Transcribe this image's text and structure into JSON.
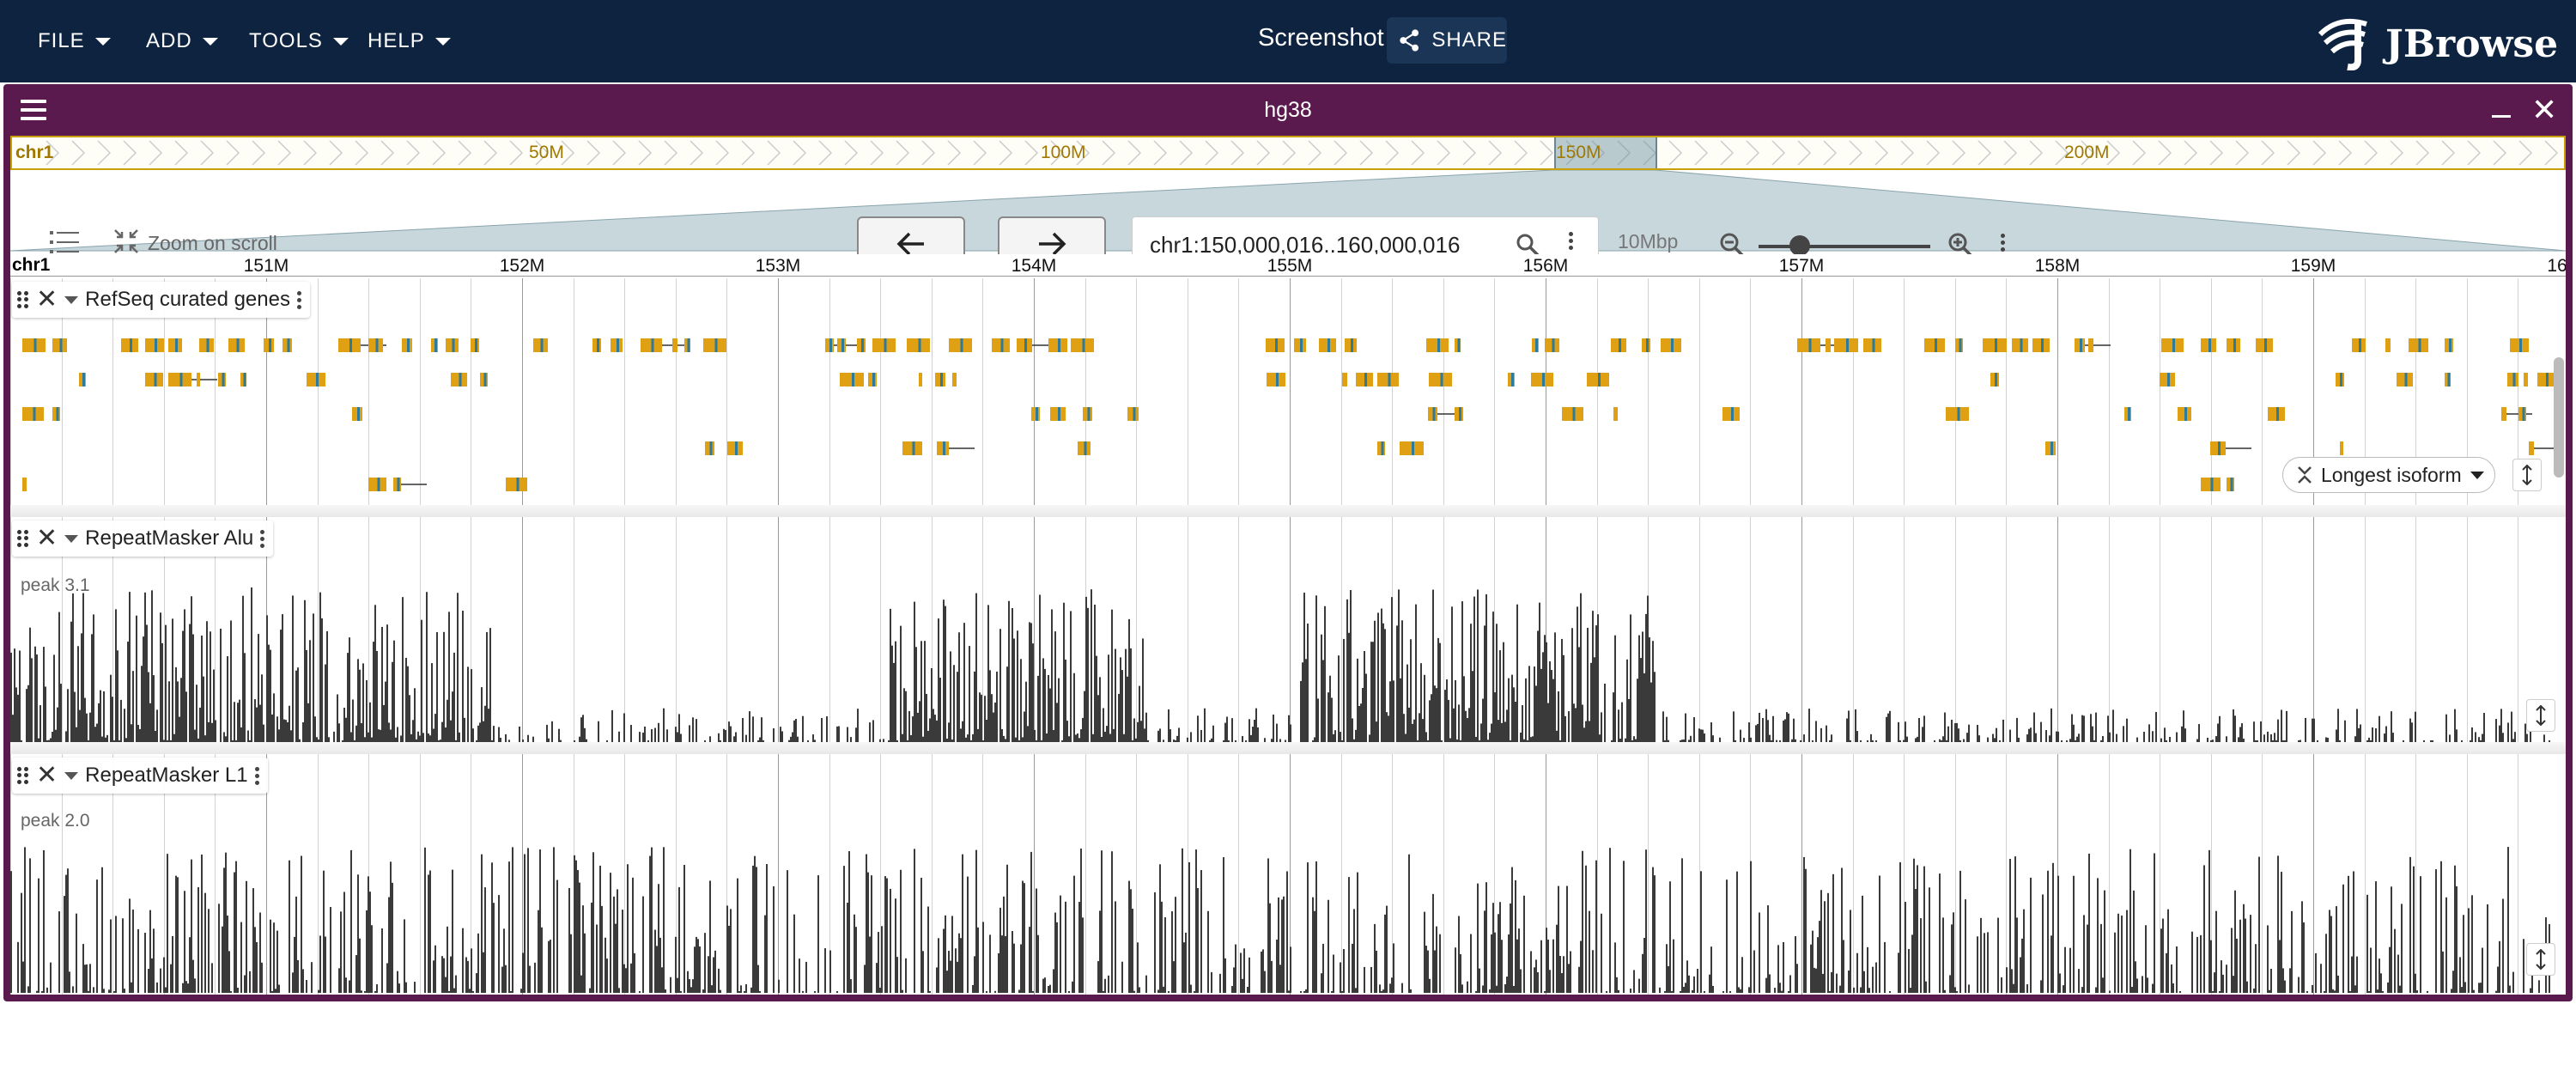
{
  "menu": [
    {
      "label": "FILE"
    },
    {
      "label": "ADD"
    },
    {
      "label": "TOOLS"
    },
    {
      "label": "HELP"
    }
  ],
  "app": {
    "screenshot_label": "Screenshot",
    "share_label": "SHARE",
    "logo_text": "JBrowse"
  },
  "view": {
    "name": "hg38",
    "overview": {
      "chrom": "chr1",
      "labels": [
        "50M",
        "100M",
        "150M",
        "200M"
      ]
    },
    "zoom_on_scroll_label": "Zoom on scroll",
    "location": "chr1:150,000,016..160,000,016",
    "bp_per_view": "10Mbp",
    "zoom_level": 0.2
  },
  "scale": {
    "chrom": "chr1",
    "ticks": [
      "151M",
      "152M",
      "153M",
      "154M",
      "155M",
      "156M",
      "157M",
      "158M",
      "159M",
      "16"
    ]
  },
  "tracks": {
    "genes": {
      "name": "RefSeq curated genes",
      "isoform_label": "Longest isoform"
    },
    "alu": {
      "name": "RepeatMasker Alu",
      "peak": "peak 3.1"
    },
    "l1": {
      "name": "RepeatMasker L1",
      "peak": "peak 2.0"
    }
  },
  "colors": {
    "appbar": "#0d233f",
    "view_frame": "#5b1a4e",
    "gene_fill": "#e0a014",
    "gene_mark": "#2d7a9a",
    "wiggle": "#3a3a3a"
  },
  "icons": [
    "caret-down-icon",
    "share-icon",
    "jbrowse-logo",
    "hamburger-icon",
    "minimize-icon",
    "close-icon",
    "track-list-icon",
    "zoom-scroll-icon",
    "arrow-left-icon",
    "arrow-right-icon",
    "search-icon",
    "kebab-icon",
    "zoom-out-icon",
    "zoom-in-icon",
    "drag-handle-icon",
    "collapse-icon",
    "resize-vertical-icon"
  ]
}
